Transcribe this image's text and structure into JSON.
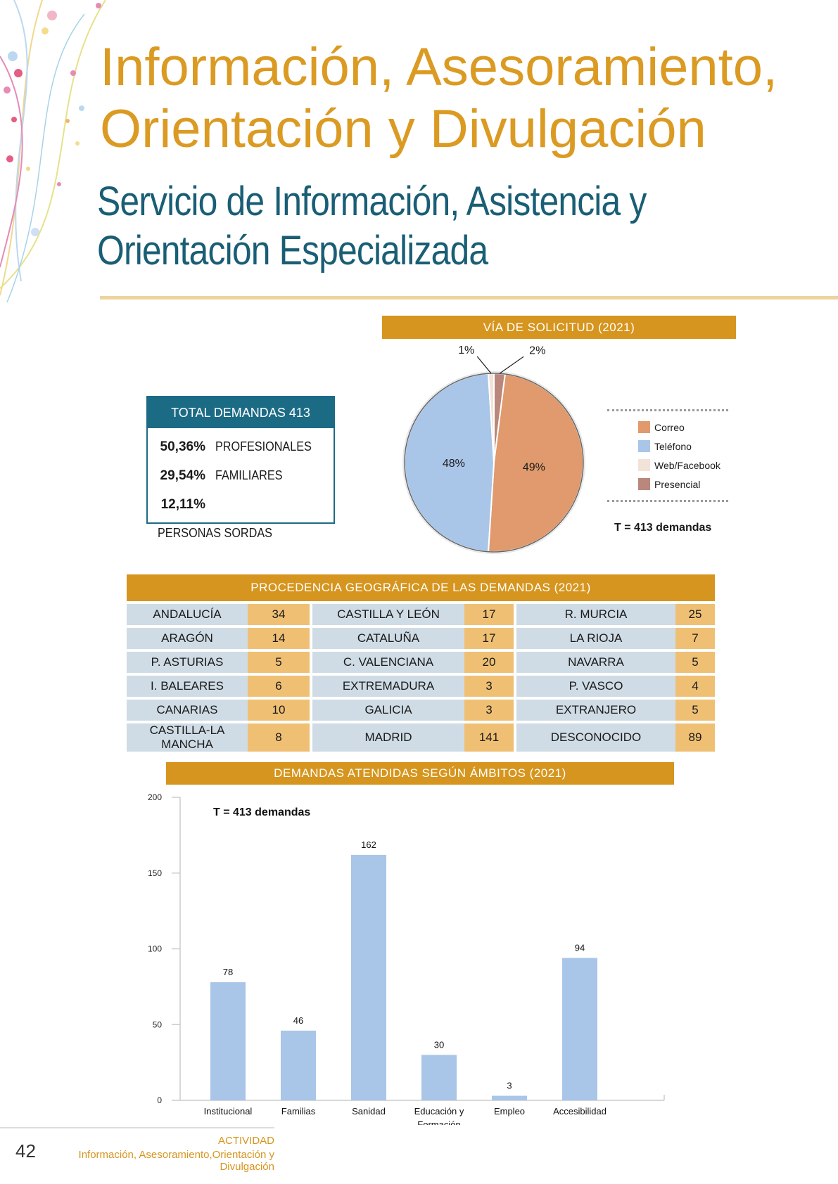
{
  "page": {
    "title_line1": "Información, Asesoramiento,",
    "title_line2": "Orientación y Divulgación",
    "subtitle_line1": "Servicio de Información, Asistencia y",
    "subtitle_line2": "Orientación Especializada"
  },
  "totals": {
    "header": "TOTAL DEMANDAS 413",
    "rows": [
      {
        "pct": "50,36%",
        "label": "PROFESIONALES"
      },
      {
        "pct": "29,54%",
        "label": "FAMILIARES"
      },
      {
        "pct": "12,11%",
        "label": "PERSONAS SORDAS"
      }
    ]
  },
  "colors": {
    "accent_orange": "#d6951e",
    "title_orange": "#db9a22",
    "teal": "#1c6b85",
    "bar_blue": "#a9c6e8"
  },
  "chart_data": [
    {
      "type": "pie",
      "title": "VÍA DE SOLICITUD (2021)",
      "slices": [
        {
          "name": "Correo",
          "value": 49,
          "label": "49%",
          "color": "#e09a6d"
        },
        {
          "name": "Teléfono",
          "value": 48,
          "label": "48%",
          "color": "#a9c6e8"
        },
        {
          "name": "Web/Facebook",
          "value": 1,
          "label": "1%",
          "color": "#f1e3d8"
        },
        {
          "name": "Presencial",
          "value": 2,
          "label": "2%",
          "color": "#b9877c"
        }
      ],
      "note": "T = 413 demandas",
      "legend": "right"
    },
    {
      "type": "table",
      "title": "PROCEDENCIA GEOGRÁFICA DE LAS DEMANDAS (2021)",
      "rows": [
        [
          [
            "ANDALUCÍA",
            34
          ],
          [
            "CASTILLA Y LEÓN",
            17
          ],
          [
            "R. MURCIA",
            25
          ]
        ],
        [
          [
            "ARAGÓN",
            14
          ],
          [
            "CATALUÑA",
            17
          ],
          [
            "LA RIOJA",
            7
          ]
        ],
        [
          [
            "P. ASTURIAS",
            5
          ],
          [
            "C. VALENCIANA",
            20
          ],
          [
            "NAVARRA",
            5
          ]
        ],
        [
          [
            "I. BALEARES",
            6
          ],
          [
            "EXTREMADURA",
            3
          ],
          [
            "P. VASCO",
            4
          ]
        ],
        [
          [
            "CANARIAS",
            10
          ],
          [
            "GALICIA",
            3
          ],
          [
            "EXTRANJERO",
            5
          ]
        ],
        [
          [
            "CASTILLA-LA MANCHA",
            8
          ],
          [
            "MADRID",
            141
          ],
          [
            "DESCONOCIDO",
            89
          ]
        ]
      ]
    },
    {
      "type": "bar",
      "title": "DEMANDAS ATENDIDAS SEGÚN ÁMBITOS (2021)",
      "categories": [
        "Institucional",
        "Familias",
        "Sanidad",
        "Educación y|Formación",
        "Empleo",
        "Accesibilidad"
      ],
      "values": [
        78,
        46,
        162,
        30,
        3,
        94
      ],
      "ylim": [
        0,
        200
      ],
      "yticks": [
        0,
        50,
        100,
        150,
        200
      ],
      "note": "T = 413 demandas",
      "xlabel": "",
      "ylabel": ""
    }
  ],
  "footer": {
    "page_number": "42",
    "section": "ACTIVIDAD",
    "subtitle": "Información, Asesoramiento,Orientación y Divulgación"
  }
}
